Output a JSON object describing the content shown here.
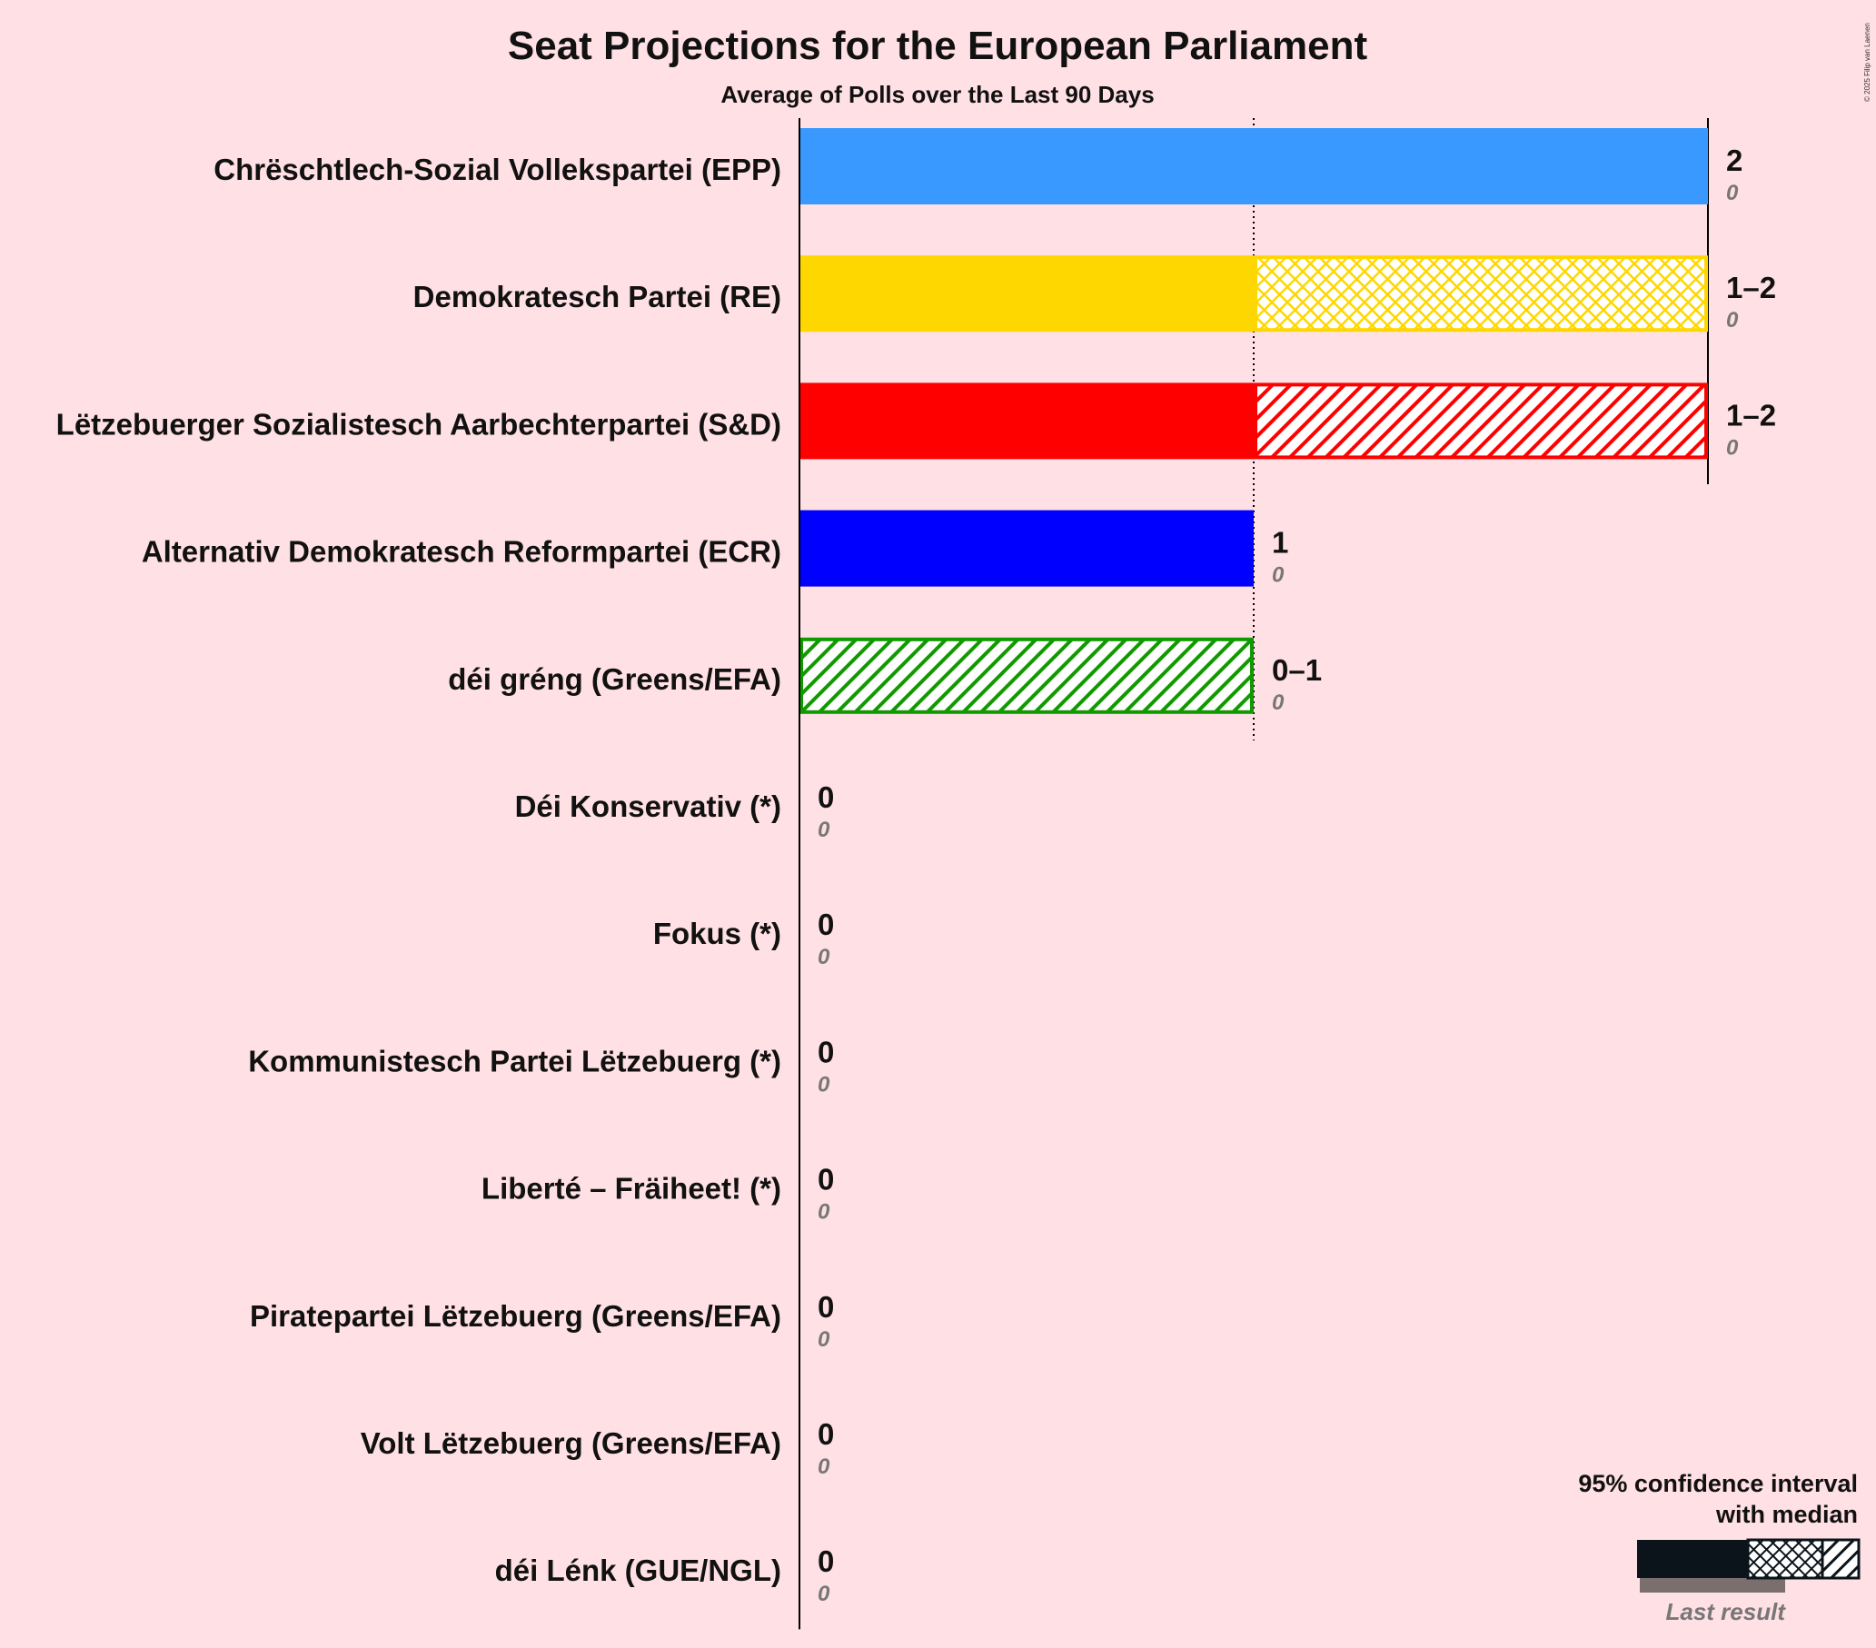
{
  "chart_data": {
    "type": "bar",
    "title": "Seat Projections for the European Parliament",
    "subtitle": "Average of Polls over the Last 90 Days",
    "copyright": "© 2025 Filip van Laenen",
    "xlim": [
      0,
      2
    ],
    "gridlines_at": [
      1,
      2
    ],
    "parties": [
      {
        "name": "Chrëschtlech-Sozial Vollekspartei (EPP)",
        "color": "#3A99FF",
        "low": 2,
        "median": 2,
        "high": 2,
        "range_label": "2",
        "last_result": 0,
        "last_label": "0"
      },
      {
        "name": "Demokratesch Partei (RE)",
        "color": "#FFD700",
        "low": 1,
        "median": 1,
        "high": 2,
        "range_label": "1–2",
        "last_result": 0,
        "last_label": "0"
      },
      {
        "name": "Lëtzebuerger Sozialistesch Aarbechterpartei (S&D)",
        "color": "#FF0000",
        "low": 1,
        "median": 2,
        "high": 2,
        "range_label": "1–2",
        "last_result": 0,
        "last_label": "0"
      },
      {
        "name": "Alternativ Demokratesch Reformpartei (ECR)",
        "color": "#0000FF",
        "low": 1,
        "median": 1,
        "high": 1,
        "range_label": "1",
        "last_result": 0,
        "last_label": "0"
      },
      {
        "name": "déi gréng (Greens/EFA)",
        "color": "#119900",
        "low": 0,
        "median": 1,
        "high": 1,
        "range_label": "0–1",
        "last_result": 0,
        "last_label": "0"
      },
      {
        "name": "Déi Konservativ (*)",
        "color": "#333333",
        "low": 0,
        "median": 0,
        "high": 0,
        "range_label": "0",
        "last_result": 0,
        "last_label": "0"
      },
      {
        "name": "Fokus (*)",
        "color": "#333333",
        "low": 0,
        "median": 0,
        "high": 0,
        "range_label": "0",
        "last_result": 0,
        "last_label": "0"
      },
      {
        "name": "Kommunistesch Partei Lëtzebuerg (*)",
        "color": "#333333",
        "low": 0,
        "median": 0,
        "high": 0,
        "range_label": "0",
        "last_result": 0,
        "last_label": "0"
      },
      {
        "name": "Liberté – Fräiheet! (*)",
        "color": "#333333",
        "low": 0,
        "median": 0,
        "high": 0,
        "range_label": "0",
        "last_result": 0,
        "last_label": "0"
      },
      {
        "name": "Piratepartei Lëtzebuerg (Greens/EFA)",
        "color": "#333333",
        "low": 0,
        "median": 0,
        "high": 0,
        "range_label": "0",
        "last_result": 0,
        "last_label": "0"
      },
      {
        "name": "Volt Lëtzebuerg (Greens/EFA)",
        "color": "#333333",
        "low": 0,
        "median": 0,
        "high": 0,
        "range_label": "0",
        "last_result": 0,
        "last_label": "0"
      },
      {
        "name": "déi Lénk (GUE/NGL)",
        "color": "#333333",
        "low": 0,
        "median": 0,
        "high": 0,
        "range_label": "0",
        "last_result": 0,
        "last_label": "0"
      }
    ],
    "legend": {
      "line1": "95% confidence interval",
      "line2": "with median",
      "last_result": "Last result"
    }
  }
}
